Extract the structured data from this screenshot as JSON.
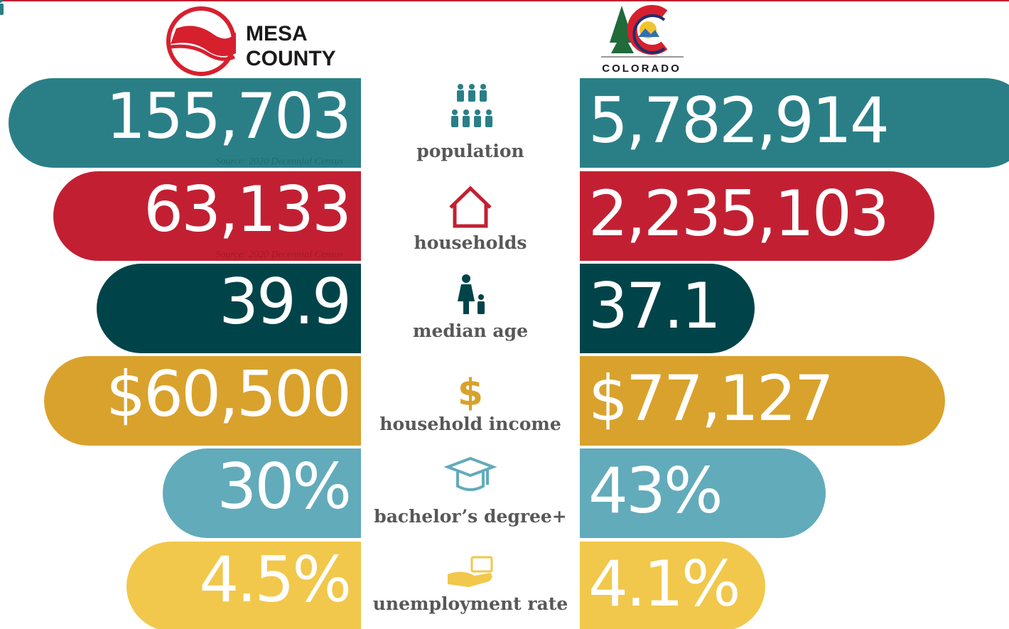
{
  "header": {
    "left_logo": [
      "MESA",
      "COUNTY"
    ],
    "right_logo": "COLORADO"
  },
  "rows": [
    {
      "label": "population",
      "left": "155,703",
      "right": "5,782,914",
      "source": "Source: 2020 Decennial Census"
    },
    {
      "label": "households",
      "left": "63,133",
      "right": "2,235,103",
      "source": "Source: 2020 Decennial Census"
    },
    {
      "label": "median age",
      "left": "39.9",
      "right": "37.1"
    },
    {
      "label": "household income",
      "left": "$60,500",
      "right": "$77,127"
    },
    {
      "label": "bachelor’s degree+",
      "left": "30%",
      "right": "43%"
    },
    {
      "label": "unemployment rate",
      "left": "4.5%",
      "right": "4.1%"
    }
  ]
}
